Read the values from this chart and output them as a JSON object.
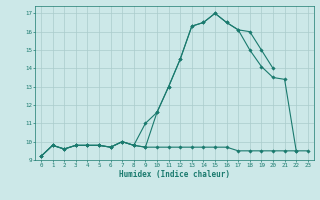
{
  "xlabel": "Humidex (Indice chaleur)",
  "bg_color": "#cce8e8",
  "grid_color": "#aacccc",
  "line_color": "#1a7a6e",
  "xlim": [
    -0.5,
    23.5
  ],
  "ylim": [
    9,
    17.4
  ],
  "xticks": [
    0,
    1,
    2,
    3,
    4,
    5,
    6,
    7,
    8,
    9,
    10,
    11,
    12,
    13,
    14,
    15,
    16,
    17,
    18,
    19,
    20,
    21,
    22,
    23
  ],
  "yticks": [
    9,
    10,
    11,
    12,
    13,
    14,
    15,
    16,
    17
  ],
  "line1_x": [
    0,
    1,
    2,
    3,
    4,
    5,
    6,
    7,
    8,
    9,
    10,
    11,
    12,
    13,
    14,
    15,
    16,
    17,
    18,
    19,
    20,
    21,
    22
  ],
  "line1_y": [
    9.2,
    9.8,
    9.6,
    9.8,
    9.8,
    9.8,
    9.7,
    10.0,
    9.8,
    11.0,
    11.6,
    13.0,
    14.5,
    16.3,
    16.5,
    17.0,
    16.5,
    16.1,
    15.0,
    14.1,
    13.5,
    13.4,
    9.5
  ],
  "line2_x": [
    0,
    1,
    2,
    3,
    4,
    5,
    6,
    7,
    8,
    9,
    10,
    11,
    12,
    13,
    14,
    15,
    16,
    17,
    18,
    19,
    20
  ],
  "line2_y": [
    9.2,
    9.8,
    9.6,
    9.8,
    9.8,
    9.8,
    9.7,
    10.0,
    9.8,
    9.7,
    11.6,
    13.0,
    14.5,
    16.3,
    16.5,
    17.0,
    16.5,
    16.1,
    16.0,
    15.0,
    14.0
  ],
  "line3_x": [
    0,
    1,
    2,
    3,
    4,
    5,
    6,
    7,
    8,
    9,
    10,
    11,
    12,
    13,
    14,
    15,
    16,
    17,
    18,
    19,
    20,
    21,
    22,
    23
  ],
  "line3_y": [
    9.2,
    9.8,
    9.6,
    9.8,
    9.8,
    9.8,
    9.7,
    10.0,
    9.8,
    9.7,
    9.7,
    9.7,
    9.7,
    9.7,
    9.7,
    9.7,
    9.7,
    9.5,
    9.5,
    9.5,
    9.5,
    9.5,
    9.5,
    9.5
  ]
}
